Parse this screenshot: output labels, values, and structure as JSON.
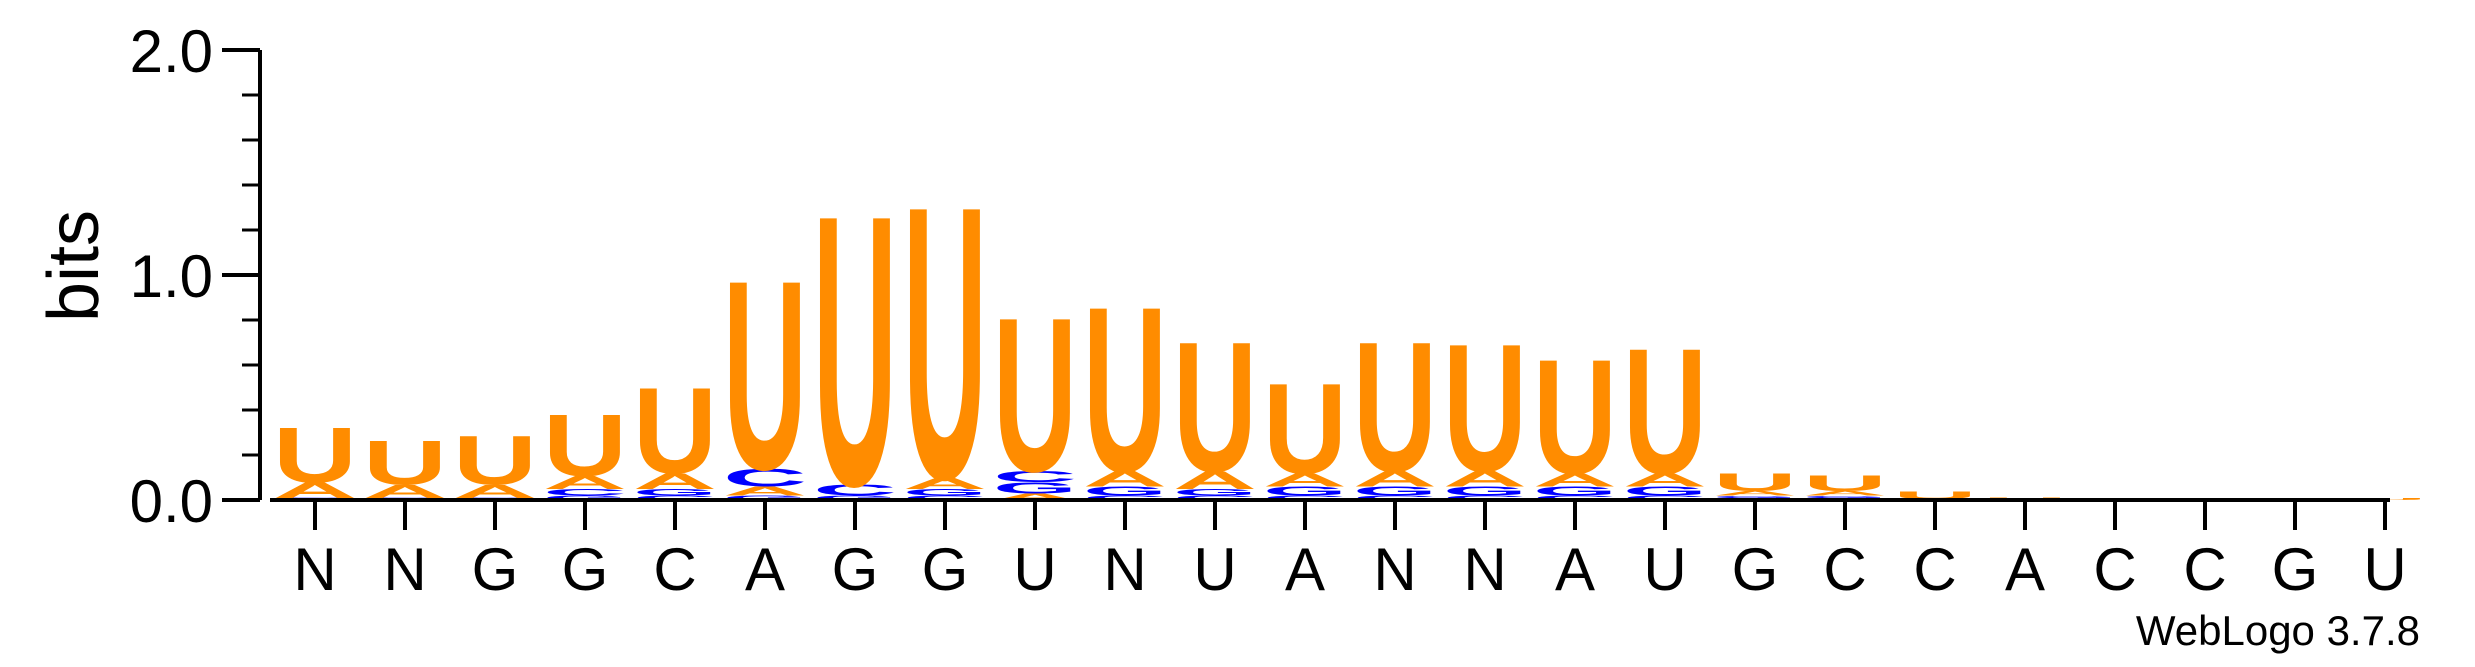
{
  "chart_data": {
    "type": "sequence-logo",
    "ylabel": "bits",
    "ylim": [
      0,
      2.0
    ],
    "yticks": [
      "0.0",
      "1.0",
      "2.0"
    ],
    "xticks": [
      "N",
      "N",
      "G",
      "G",
      "C",
      "A",
      "G",
      "G",
      "U",
      "N",
      "U",
      "A",
      "N",
      "N",
      "A",
      "U",
      "G",
      "C",
      "C",
      "A",
      "C",
      "C",
      "G",
      "U"
    ],
    "credit": "WebLogo 3.7.8",
    "colors": {
      "U": "#FF8C00",
      "A": "#FF8C00",
      "C": "#0000FF",
      "G": "#0000FF"
    },
    "columns": [
      {
        "label": "N",
        "letters": [
          {
            "b": "C",
            "h": 0.005
          },
          {
            "b": "G",
            "h": 0.005
          },
          {
            "b": "A",
            "h": 0.07
          },
          {
            "b": "U",
            "h": 0.25
          }
        ]
      },
      {
        "label": "N",
        "letters": [
          {
            "b": "C",
            "h": 0.005
          },
          {
            "b": "G",
            "h": 0.005
          },
          {
            "b": "A",
            "h": 0.06
          },
          {
            "b": "U",
            "h": 0.2
          }
        ]
      },
      {
        "label": "G",
        "letters": [
          {
            "b": "C",
            "h": 0.005
          },
          {
            "b": "G",
            "h": 0.005
          },
          {
            "b": "A",
            "h": 0.06
          },
          {
            "b": "U",
            "h": 0.22
          }
        ]
      },
      {
        "label": "G",
        "letters": [
          {
            "b": "G",
            "h": 0.02
          },
          {
            "b": "C",
            "h": 0.03
          },
          {
            "b": "A",
            "h": 0.06
          },
          {
            "b": "U",
            "h": 0.28
          }
        ]
      },
      {
        "label": "C",
        "letters": [
          {
            "b": "C",
            "h": 0.02
          },
          {
            "b": "G",
            "h": 0.03
          },
          {
            "b": "A",
            "h": 0.07
          },
          {
            "b": "U",
            "h": 0.39
          }
        ]
      },
      {
        "label": "A",
        "letters": [
          {
            "b": "G",
            "h": 0.02
          },
          {
            "b": "A",
            "h": 0.04
          },
          {
            "b": "C",
            "h": 0.08
          },
          {
            "b": "U",
            "h": 0.86
          }
        ]
      },
      {
        "label": "G",
        "letters": [
          {
            "b": "G",
            "h": 0.02
          },
          {
            "b": "C",
            "h": 0.05
          },
          {
            "b": "U",
            "h": 1.23
          }
        ]
      },
      {
        "label": "G",
        "letters": [
          {
            "b": "C",
            "h": 0.02
          },
          {
            "b": "G",
            "h": 0.03
          },
          {
            "b": "A",
            "h": 0.05
          },
          {
            "b": "U",
            "h": 1.24
          }
        ]
      },
      {
        "label": "U",
        "letters": [
          {
            "b": "A",
            "h": 0.03
          },
          {
            "b": "G",
            "h": 0.05
          },
          {
            "b": "C",
            "h": 0.05
          },
          {
            "b": "U",
            "h": 0.7
          }
        ]
      },
      {
        "label": "N",
        "letters": [
          {
            "b": "C",
            "h": 0.02
          },
          {
            "b": "G",
            "h": 0.04
          },
          {
            "b": "A",
            "h": 0.07
          },
          {
            "b": "U",
            "h": 0.75
          }
        ]
      },
      {
        "label": "U",
        "letters": [
          {
            "b": "C",
            "h": 0.02
          },
          {
            "b": "G",
            "h": 0.03
          },
          {
            "b": "A",
            "h": 0.08
          },
          {
            "b": "U",
            "h": 0.59
          }
        ]
      },
      {
        "label": "A",
        "letters": [
          {
            "b": "C",
            "h": 0.02
          },
          {
            "b": "G",
            "h": 0.04
          },
          {
            "b": "A",
            "h": 0.06
          },
          {
            "b": "U",
            "h": 0.41
          }
        ]
      },
      {
        "label": "N",
        "letters": [
          {
            "b": "C",
            "h": 0.02
          },
          {
            "b": "G",
            "h": 0.04
          },
          {
            "b": "A",
            "h": 0.07
          },
          {
            "b": "U",
            "h": 0.59
          }
        ]
      },
      {
        "label": "N",
        "letters": [
          {
            "b": "C",
            "h": 0.02
          },
          {
            "b": "G",
            "h": 0.04
          },
          {
            "b": "A",
            "h": 0.07
          },
          {
            "b": "U",
            "h": 0.58
          }
        ]
      },
      {
        "label": "A",
        "letters": [
          {
            "b": "C",
            "h": 0.02
          },
          {
            "b": "G",
            "h": 0.04
          },
          {
            "b": "A",
            "h": 0.06
          },
          {
            "b": "U",
            "h": 0.52
          }
        ]
      },
      {
        "label": "U",
        "letters": [
          {
            "b": "C",
            "h": 0.02
          },
          {
            "b": "G",
            "h": 0.04
          },
          {
            "b": "A",
            "h": 0.06
          },
          {
            "b": "U",
            "h": 0.57
          }
        ]
      },
      {
        "label": "G",
        "letters": [
          {
            "b": "C",
            "h": 0.01
          },
          {
            "b": "G",
            "h": 0.01
          },
          {
            "b": "A",
            "h": 0.02
          },
          {
            "b": "U",
            "h": 0.08
          }
        ]
      },
      {
        "label": "C",
        "letters": [
          {
            "b": "C",
            "h": 0.01
          },
          {
            "b": "G",
            "h": 0.01
          },
          {
            "b": "A",
            "h": 0.02
          },
          {
            "b": "U",
            "h": 0.07
          }
        ]
      },
      {
        "label": "C",
        "letters": [
          {
            "b": "A",
            "h": 0.005
          },
          {
            "b": "U",
            "h": 0.035
          }
        ]
      },
      {
        "label": "A",
        "letters": [
          {
            "b": "U",
            "h": 0.01
          }
        ]
      },
      {
        "label": "C",
        "letters": [
          {
            "b": "U",
            "h": 0.008
          }
        ]
      },
      {
        "label": "C",
        "letters": [
          {
            "b": "U",
            "h": 0.008
          }
        ]
      },
      {
        "label": "G",
        "letters": [
          {
            "b": "U",
            "h": 0.008
          }
        ]
      },
      {
        "label": "U",
        "letters": [
          {
            "b": "U",
            "h": 0.008
          }
        ]
      }
    ]
  }
}
